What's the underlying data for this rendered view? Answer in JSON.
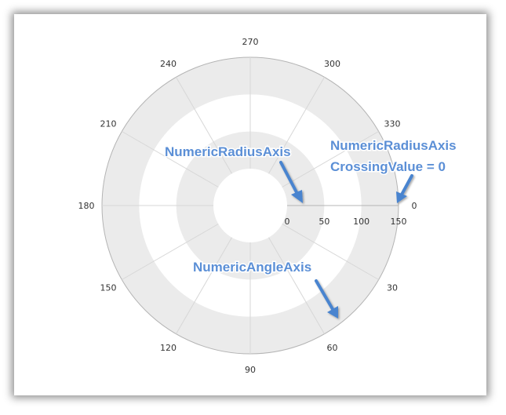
{
  "chart_data": {
    "type": "polar",
    "angle_axis": {
      "labels": [
        "0",
        "30",
        "60",
        "90",
        "120",
        "150",
        "180",
        "210",
        "240",
        "270",
        "300",
        "330"
      ],
      "values": [
        0,
        30,
        60,
        90,
        120,
        150,
        180,
        210,
        240,
        270,
        300,
        330
      ],
      "range": [
        0,
        360
      ],
      "direction": "clockwise",
      "zero_position": "right"
    },
    "radius_axis": {
      "labels": [
        "0",
        "50",
        "100",
        "150"
      ],
      "values": [
        0,
        50,
        100,
        150
      ],
      "range": [
        0,
        150
      ],
      "crossing_angle": 0
    },
    "inner_radius_value": 0,
    "grid": true,
    "banded_rings": true,
    "series": []
  },
  "annotations": {
    "radius_axis_label": "NumericRadiusAxis",
    "crossing_line1": "NumericRadiusAxis",
    "crossing_line2": "CrossingValue = 0",
    "angle_axis_label": "NumericAngleAxis"
  },
  "colors": {
    "band": "#ebebeb",
    "grid": "#d7d7d7",
    "axis_line": "#b4b4b4",
    "callout_text": "#5b8fd6",
    "arrow": "#4a84cf"
  }
}
